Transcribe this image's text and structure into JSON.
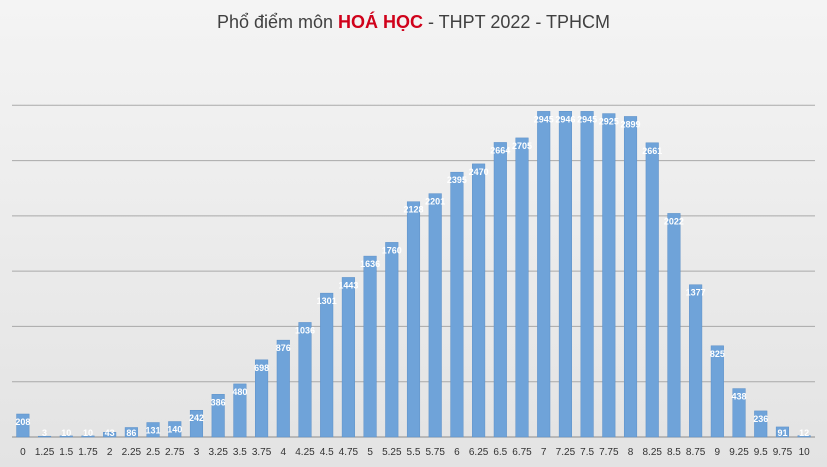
{
  "chart_data": {
    "type": "bar",
    "title": {
      "prefix": "Phổ điểm môn ",
      "highlight": "HOÁ HỌC",
      "suffix": " - THPT 2022 - TPHCM"
    },
    "xlabel": "",
    "ylabel": "",
    "ylim": [
      0,
      3500
    ],
    "gridlines": [
      0,
      500,
      1000,
      1500,
      2000,
      2500,
      3000
    ],
    "grid": true,
    "legend": "none",
    "categories": [
      "0",
      "1.25",
      "1.5",
      "1.75",
      "2",
      "2.25",
      "2.5",
      "2.75",
      "3",
      "3.25",
      "3.5",
      "3.75",
      "4",
      "4.25",
      "4.5",
      "4.75",
      "5",
      "5.25",
      "5.5",
      "5.75",
      "6",
      "6.25",
      "6.5",
      "6.75",
      "7",
      "7.25",
      "7.5",
      "7.75",
      "8",
      "8.25",
      "8.5",
      "8.75",
      "9",
      "9.25",
      "9.5",
      "9.75",
      "10"
    ],
    "values": [
      208,
      3,
      10,
      10,
      43,
      86,
      131,
      140,
      242,
      386,
      480,
      698,
      876,
      1036,
      1301,
      1443,
      1636,
      1760,
      2128,
      2201,
      2395,
      2470,
      2664,
      2705,
      2945,
      2946,
      2945,
      2925,
      2899,
      2661,
      2022,
      1377,
      825,
      438,
      236,
      91,
      12
    ],
    "labels": [
      "208",
      "3",
      "10",
      "10",
      "43",
      "86",
      "131",
      "140",
      "242",
      "386",
      "480",
      "698",
      "876",
      "1036",
      "1301",
      "1443",
      "1636",
      "1760",
      "2128",
      "2201",
      "2395",
      "2470",
      "2664",
      "2705",
      "2945",
      "2946",
      "2945",
      "2925",
      "2899",
      "2661",
      "2022",
      "1377",
      "825",
      "438",
      "236",
      "91",
      "12"
    ],
    "colors": {
      "bar": "#6fa3d9",
      "bar_edge": "#5b8fc7",
      "grid": "#a9a9a9",
      "label": "#ffffff",
      "tick": "#333333"
    }
  }
}
